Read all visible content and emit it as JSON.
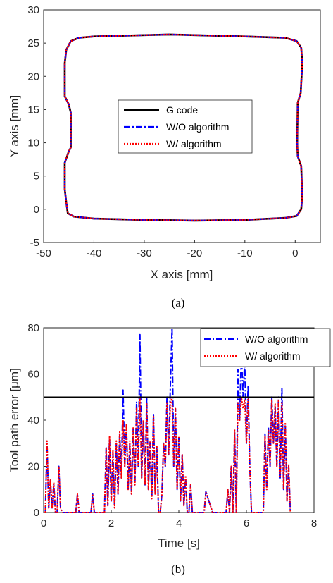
{
  "chart_data": [
    {
      "type": "line",
      "caption": "(a)",
      "xlabel": "X axis [mm]",
      "ylabel": "Y axis [mm]",
      "xlim": [
        -50,
        5
      ],
      "ylim": [
        -5,
        30
      ],
      "xticks": [
        -50,
        -40,
        -30,
        -20,
        -10,
        0
      ],
      "yticks": [
        -5,
        0,
        5,
        10,
        15,
        20,
        25,
        30
      ],
      "grid": false,
      "legend_position": "center",
      "series": [
        {
          "name": "G code",
          "color": "#000000",
          "style": "solid"
        },
        {
          "name": "W/O algorithm",
          "color": "#0000ff",
          "style": "dashdot"
        },
        {
          "name": "W/ algorithm",
          "color": "#ff0000",
          "style": "dotted"
        }
      ],
      "path": [
        [
          -45.5,
          1.0
        ],
        [
          -45.2,
          -0.6
        ],
        [
          -44.0,
          -1.1
        ],
        [
          -40.0,
          -1.4
        ],
        [
          -30.0,
          -1.6
        ],
        [
          -20.0,
          -1.7
        ],
        [
          -10.0,
          -1.6
        ],
        [
          -2.0,
          -1.3
        ],
        [
          0.3,
          -1.0
        ],
        [
          1.2,
          0.0
        ],
        [
          1.4,
          2.0
        ],
        [
          1.2,
          6.5
        ],
        [
          0.5,
          8.0
        ],
        [
          0.4,
          10.0
        ],
        [
          0.5,
          16.0
        ],
        [
          1.1,
          17.5
        ],
        [
          1.4,
          22.0
        ],
        [
          1.2,
          24.3
        ],
        [
          0.3,
          25.3
        ],
        [
          -2.0,
          25.8
        ],
        [
          -10.0,
          26.0
        ],
        [
          -20.0,
          26.2
        ],
        [
          -25.0,
          26.3
        ],
        [
          -30.0,
          26.2
        ],
        [
          -40.0,
          26.0
        ],
        [
          -43.0,
          25.8
        ],
        [
          -44.6,
          25.3
        ],
        [
          -45.5,
          24.0
        ],
        [
          -45.8,
          22.0
        ],
        [
          -45.8,
          17.0
        ],
        [
          -45.0,
          15.8
        ],
        [
          -44.6,
          14.5
        ],
        [
          -44.6,
          9.3
        ],
        [
          -45.0,
          8.7
        ],
        [
          -45.8,
          7.0
        ],
        [
          -45.8,
          3.0
        ],
        [
          -45.5,
          1.0
        ]
      ]
    },
    {
      "type": "line",
      "caption": "(b)",
      "xlabel": "Time [s]",
      "ylabel": "Tool path error [μm]",
      "xlim": [
        0,
        8
      ],
      "ylim": [
        0,
        80
      ],
      "xticks": [
        0,
        2,
        4,
        6,
        8
      ],
      "yticks": [
        0,
        20,
        40,
        60,
        80
      ],
      "grid": false,
      "legend_position": "top-right",
      "threshold": 50,
      "series": [
        {
          "name": "W/O algorithm",
          "color": "#0000ff",
          "style": "dashdot",
          "x": [
            0.05,
            0.1,
            0.15,
            0.2,
            0.25,
            0.3,
            0.35,
            0.4,
            0.45,
            0.5,
            0.55,
            0.95,
            1.0,
            1.05,
            1.4,
            1.45,
            1.5,
            1.8,
            1.85,
            1.9,
            1.95,
            2.0,
            2.05,
            2.1,
            2.15,
            2.2,
            2.25,
            2.3,
            2.35,
            2.4,
            2.45,
            2.5,
            2.55,
            2.6,
            2.65,
            2.7,
            2.75,
            2.8,
            2.85,
            2.9,
            2.95,
            3.0,
            3.05,
            3.1,
            3.15,
            3.2,
            3.25,
            3.3,
            3.35,
            3.4,
            3.45,
            3.5,
            3.55,
            3.6,
            3.65,
            3.7,
            3.75,
            3.8,
            3.85,
            3.9,
            3.95,
            4.0,
            4.05,
            4.1,
            4.15,
            4.2,
            4.25,
            4.3,
            4.35,
            4.4,
            4.5,
            4.75,
            4.8,
            5.0,
            5.05,
            5.4,
            5.45,
            5.5,
            5.55,
            5.6,
            5.65,
            5.7,
            5.75,
            5.8,
            5.85,
            5.9,
            5.95,
            6.0,
            6.05,
            6.1,
            6.15,
            6.5,
            6.55,
            6.6,
            6.65,
            6.7,
            6.75,
            6.8,
            6.85,
            6.9,
            6.95,
            7.0,
            7.05,
            7.1,
            7.15,
            7.2,
            7.25,
            7.3
          ],
          "y": [
            0,
            30,
            2,
            14,
            2,
            12,
            0,
            0,
            20,
            2,
            0,
            0,
            8,
            0,
            0,
            8,
            0,
            0,
            28,
            3,
            32,
            5,
            26,
            2,
            30,
            8,
            34,
            15,
            53,
            20,
            38,
            10,
            30,
            8,
            36,
            12,
            48,
            20,
            77,
            15,
            40,
            12,
            50,
            10,
            30,
            6,
            43,
            8,
            28,
            0,
            0,
            8,
            30,
            20,
            50,
            25,
            55,
            80,
            20,
            45,
            10,
            32,
            5,
            25,
            3,
            15,
            0,
            0,
            12,
            0,
            0,
            0,
            9,
            0,
            0,
            0,
            10,
            0,
            20,
            0,
            35,
            0,
            62,
            40,
            70,
            50,
            66,
            30,
            55,
            20,
            0,
            0,
            34,
            10,
            37,
            20,
            50,
            30,
            46,
            20,
            50,
            15,
            54,
            10,
            38,
            5,
            20,
            0
          ]
        },
        {
          "name": "W/ algorithm",
          "color": "#ff0000",
          "style": "dotted",
          "x": [
            0.05,
            0.1,
            0.15,
            0.2,
            0.25,
            0.3,
            0.35,
            0.4,
            0.45,
            0.5,
            0.55,
            0.95,
            1.0,
            1.05,
            1.4,
            1.45,
            1.5,
            1.8,
            1.85,
            1.9,
            1.95,
            2.0,
            2.05,
            2.1,
            2.15,
            2.2,
            2.25,
            2.3,
            2.35,
            2.4,
            2.45,
            2.5,
            2.55,
            2.6,
            2.65,
            2.7,
            2.75,
            2.8,
            2.85,
            2.9,
            2.95,
            3.0,
            3.05,
            3.1,
            3.15,
            3.2,
            3.25,
            3.3,
            3.35,
            3.4,
            3.45,
            3.5,
            3.55,
            3.6,
            3.65,
            3.7,
            3.75,
            3.8,
            3.85,
            3.9,
            3.95,
            4.0,
            4.05,
            4.1,
            4.15,
            4.2,
            4.25,
            4.3,
            4.35,
            4.4,
            4.5,
            4.75,
            4.8,
            5.0,
            5.05,
            5.4,
            5.45,
            5.5,
            5.55,
            5.6,
            5.65,
            5.7,
            5.75,
            5.8,
            5.85,
            5.9,
            5.95,
            6.0,
            6.05,
            6.1,
            6.15,
            6.5,
            6.55,
            6.6,
            6.65,
            6.7,
            6.75,
            6.8,
            6.85,
            6.9,
            6.95,
            7.0,
            7.05,
            7.1,
            7.15,
            7.2,
            7.25,
            7.3
          ],
          "y": [
            0,
            31,
            2,
            14,
            2,
            13,
            0,
            0,
            20,
            2,
            0,
            0,
            8,
            0,
            0,
            8,
            0,
            0,
            28,
            3,
            33,
            5,
            27,
            2,
            31,
            8,
            35,
            15,
            40,
            20,
            38,
            10,
            31,
            8,
            37,
            12,
            45,
            20,
            50,
            15,
            40,
            12,
            47,
            10,
            31,
            6,
            42,
            8,
            29,
            0,
            0,
            8,
            30,
            20,
            48,
            25,
            47,
            50,
            20,
            45,
            10,
            33,
            5,
            25,
            3,
            16,
            0,
            0,
            12,
            0,
            0,
            0,
            9,
            0,
            0,
            0,
            10,
            0,
            20,
            0,
            36,
            0,
            48,
            40,
            50,
            45,
            49,
            30,
            49,
            20,
            0,
            0,
            33,
            10,
            36,
            20,
            49,
            30,
            47,
            20,
            49,
            15,
            48,
            10,
            39,
            5,
            21,
            0
          ]
        }
      ]
    }
  ]
}
